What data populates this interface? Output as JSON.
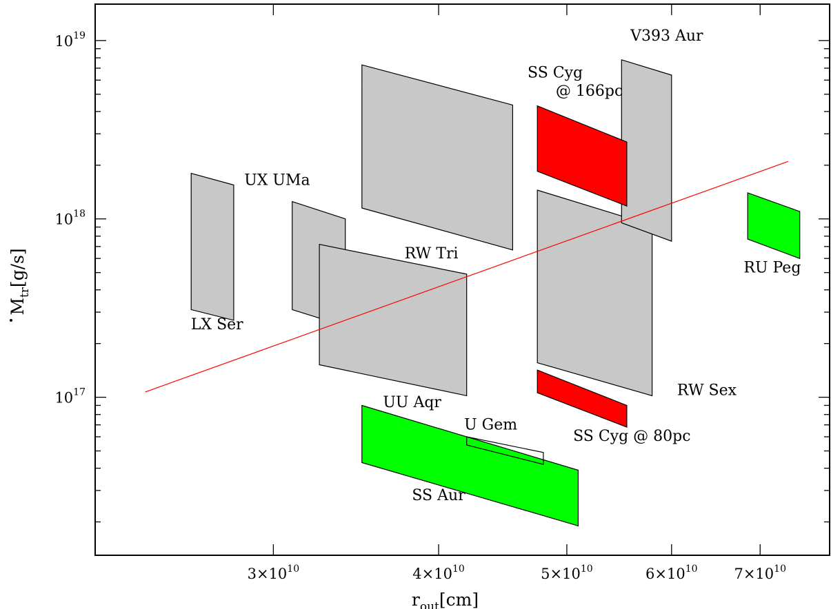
{
  "chart_data": {
    "type": "scatter",
    "xlabel": {
      "main": "r",
      "sub": "out",
      "unit": "[cm]"
    },
    "ylabel": {
      "main": "M",
      "sub": "tr",
      "unit": "[g/s]"
    },
    "x_scale": "log",
    "y_scale": "log",
    "xlim": [
      22000000000.0,
      79000000000.0
    ],
    "ylim": [
      1.3e+16,
      1.6e+19
    ],
    "x_ticks": [
      {
        "value": 30000000000.0,
        "mant": "3",
        "exp": "10"
      },
      {
        "value": 40000000000.0,
        "mant": "4",
        "exp": "10"
      },
      {
        "value": 50000000000.0,
        "mant": "5",
        "exp": "10"
      },
      {
        "value": 60000000000.0,
        "mant": "6",
        "exp": "10"
      },
      {
        "value": 70000000000.0,
        "mant": "7",
        "exp": "10"
      }
    ],
    "y_ticks": [
      {
        "value": 1e+17,
        "base": "10",
        "exp": "17"
      },
      {
        "value": 1e+18,
        "base": "10",
        "exp": "18"
      },
      {
        "value": 1e+19,
        "base": "10",
        "exp": "19"
      }
    ],
    "colors": {
      "gray": "#c8c8c8",
      "red": "#ff0000",
      "green": "#00ff00",
      "line": "#ff0000"
    },
    "regions": [
      {
        "name": "LX Ser",
        "color": "gray",
        "points": [
          [
            26000000000.0,
            1.8e+18
          ],
          [
            28000000000.0,
            1.55e+18
          ],
          [
            28000000000.0,
            2.7e+17
          ],
          [
            26000000000.0,
            3.1e+17
          ]
        ]
      },
      {
        "name": "UX UMa",
        "color": "gray",
        "points": [
          [
            31000000000.0,
            1.25e+18
          ],
          [
            34000000000.0,
            1e+18
          ],
          [
            34000000000.0,
            2.5e+17
          ],
          [
            31000000000.0,
            3.1e+17
          ]
        ]
      },
      {
        "name": "UU Aqr",
        "color": "gray",
        "points": [
          [
            32500000000.0,
            7.2e+17
          ],
          [
            42000000000.0,
            4.9e+17
          ],
          [
            42000000000.0,
            1.02e+17
          ],
          [
            32500000000.0,
            1.52e+17
          ]
        ]
      },
      {
        "name": "RW Tri",
        "color": "gray",
        "points": [
          [
            35000000000.0,
            7.3e+18
          ],
          [
            45500000000.0,
            4.35e+18
          ],
          [
            45500000000.0,
            6.7e+17
          ],
          [
            35000000000.0,
            1.15e+18
          ]
        ]
      },
      {
        "name": "RW Sex",
        "color": "gray",
        "points": [
          [
            47500000000.0,
            1.45e+18
          ],
          [
            58000000000.0,
            9.2e+17
          ],
          [
            58000000000.0,
            1.02e+17
          ],
          [
            47500000000.0,
            1.56e+17
          ]
        ]
      },
      {
        "name": "V393 Aur",
        "color": "gray",
        "points": [
          [
            55000000000.0,
            7.8e+18
          ],
          [
            60000000000.0,
            6.4e+18
          ],
          [
            60000000000.0,
            7.5e+17
          ],
          [
            55000000000.0,
            9.5e+17
          ]
        ]
      },
      {
        "name": "SS Cyg @ 166pc",
        "color": "red",
        "points": [
          [
            47500000000.0,
            4.3e+18
          ],
          [
            55500000000.0,
            2.7e+18
          ],
          [
            55500000000.0,
            1.18e+18
          ],
          [
            47500000000.0,
            1.85e+18
          ]
        ]
      },
      {
        "name": "SS Cyg @ 80pc",
        "color": "red",
        "points": [
          [
            47500000000.0,
            1.42e+17
          ],
          [
            55500000000.0,
            9e+16
          ],
          [
            55500000000.0,
            6.8e+16
          ],
          [
            47500000000.0,
            1.06e+17
          ]
        ]
      },
      {
        "name": "RU Peg",
        "color": "green",
        "points": [
          [
            68500000000.0,
            1.4e+18
          ],
          [
            75000000000.0,
            1.1e+18
          ],
          [
            75000000000.0,
            6e+17
          ],
          [
            68500000000.0,
            7.7e+17
          ]
        ]
      },
      {
        "name": "SS Aur",
        "color": "green",
        "points": [
          [
            35000000000.0,
            9e+16
          ],
          [
            51000000000.0,
            3.9e+16
          ],
          [
            51000000000.0,
            1.9e+16
          ],
          [
            35000000000.0,
            4.3e+16
          ]
        ]
      },
      {
        "name": "U Gem",
        "color": "none",
        "points": [
          [
            42000000000.0,
            6e+16
          ],
          [
            48000000000.0,
            4.9e+16
          ],
          [
            48000000000.0,
            4.2e+16
          ],
          [
            42000000000.0,
            5.4e+16
          ]
        ]
      }
    ],
    "line": {
      "points": [
        [
          24000000000.0,
          1.07e+17
        ],
        [
          73500000000.0,
          2.1e+18
        ]
      ]
    },
    "labels": [
      {
        "text": "LX Ser",
        "x": 27200000000.0,
        "y": 2.4e+17
      },
      {
        "text": "UX UMa",
        "x": 30200000000.0,
        "y": 1.55e+18
      },
      {
        "text": "UU Aqr",
        "x": 38200000000.0,
        "y": 8.8e+16
      },
      {
        "text": "RW Tri",
        "x": 39500000000.0,
        "y": 6e+17
      },
      {
        "text": "RW Sex",
        "x": 63800000000.0,
        "y": 1.03e+17
      },
      {
        "text": "V393 Aur",
        "x": 59500000000.0,
        "y": 1e+19
      },
      {
        "text": "SS Cyg",
        "x": 49000000000.0,
        "y": 6.2e+18
      },
      {
        "text": "@ 166pc",
        "x": 52000000000.0,
        "y": 4.9e+18
      },
      {
        "text": "SS Cyg @ 80pc",
        "x": 56000000000.0,
        "y": 5.7e+16
      },
      {
        "text": "RU Peg",
        "x": 71500000000.0,
        "y": 5e+17
      },
      {
        "text": "SS Aur",
        "x": 40000000000.0,
        "y": 2.65e+16
      },
      {
        "text": "U Gem",
        "x": 43800000000.0,
        "y": 6.6e+16
      }
    ]
  }
}
